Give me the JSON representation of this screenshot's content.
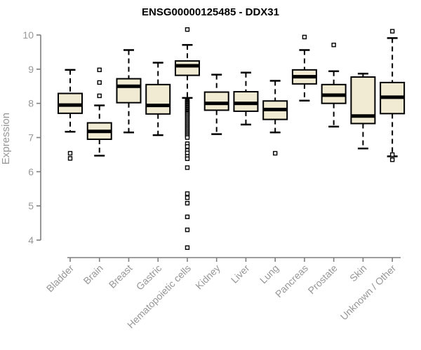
{
  "chart_data": {
    "type": "boxplot",
    "title": "ENSG00000125485 - DDX31",
    "ylabel": "Expression",
    "xlabel": "",
    "ylim": [
      4,
      10
    ],
    "yticks": [
      4,
      5,
      6,
      7,
      8,
      9,
      10
    ],
    "grid": false,
    "legend": "none",
    "categories": [
      "Bladder",
      "Brain",
      "Breast",
      "Gastric",
      "Hematopoietic cells",
      "Kidney",
      "Liver",
      "Lung",
      "Pancreas",
      "Prostate",
      "Skin",
      "Unknown / Other"
    ],
    "boxes": [
      {
        "category": "Bladder",
        "low": 7.17,
        "q1": 7.71,
        "median": 7.95,
        "q3": 8.29,
        "high": 8.98,
        "outliers": [
          6.54,
          6.39
        ]
      },
      {
        "category": "Brain",
        "low": 6.47,
        "q1": 6.95,
        "median": 7.18,
        "q3": 7.43,
        "high": 7.94,
        "outliers": [
          8.98,
          8.61,
          8.22
        ]
      },
      {
        "category": "Breast",
        "low": 7.15,
        "q1": 8.02,
        "median": 8.5,
        "q3": 8.72,
        "high": 9.56,
        "outliers": []
      },
      {
        "category": "Gastric",
        "low": 7.07,
        "q1": 7.69,
        "median": 7.94,
        "q3": 8.55,
        "high": 9.19,
        "outliers": []
      },
      {
        "category": "Hematopoietic cells",
        "low": 8.16,
        "q1": 8.82,
        "median": 9.1,
        "q3": 9.24,
        "high": 9.71,
        "outliers": [
          10.16,
          8.1,
          8.07,
          8.04,
          8.01,
          7.98,
          7.95,
          7.92,
          7.89,
          7.86,
          7.83,
          7.8,
          7.77,
          7.74,
          7.71,
          7.68,
          7.64,
          7.6,
          7.56,
          7.52,
          7.48,
          7.44,
          7.4,
          7.36,
          7.32,
          7.28,
          7.24,
          7.2,
          7.16,
          7.12,
          7.08,
          7.04,
          7.0,
          6.82,
          6.74,
          6.62,
          6.55,
          6.45,
          6.38,
          6.12,
          5.36,
          5.24,
          5.08,
          4.68,
          4.3,
          3.78
        ]
      },
      {
        "category": "Kidney",
        "low": 7.1,
        "q1": 7.8,
        "median": 8.0,
        "q3": 8.33,
        "high": 8.84,
        "outliers": []
      },
      {
        "category": "Liver",
        "low": 7.38,
        "q1": 7.77,
        "median": 8.0,
        "q3": 8.34,
        "high": 8.9,
        "outliers": []
      },
      {
        "category": "Lung",
        "low": 7.15,
        "q1": 7.53,
        "median": 7.82,
        "q3": 8.07,
        "high": 8.66,
        "outliers": [
          6.54
        ]
      },
      {
        "category": "Pancreas",
        "low": 8.08,
        "q1": 8.57,
        "median": 8.78,
        "q3": 8.98,
        "high": 9.56,
        "outliers": [
          9.94
        ]
      },
      {
        "category": "Prostate",
        "low": 7.32,
        "q1": 8.0,
        "median": 8.24,
        "q3": 8.55,
        "high": 8.94,
        "outliers": [
          9.71
        ]
      },
      {
        "category": "Skin",
        "low": 6.68,
        "q1": 7.41,
        "median": 7.63,
        "q3": 8.77,
        "high": 8.87,
        "outliers": []
      },
      {
        "category": "Unknown / Other",
        "low": 6.45,
        "q1": 7.7,
        "median": 8.18,
        "q3": 8.61,
        "high": 9.91,
        "outliers": [
          10.11,
          6.5,
          6.35
        ]
      }
    ],
    "colors": {
      "background": "#FFFFFF",
      "box_fill": "#F0EBD2",
      "box_stroke": "#000000",
      "median": "#000000",
      "whisker": "#000000",
      "outlier_fill": "#FFFFFF",
      "axis": "#7F7F7F",
      "tick_label": "#979797",
      "title": "#000000"
    }
  }
}
